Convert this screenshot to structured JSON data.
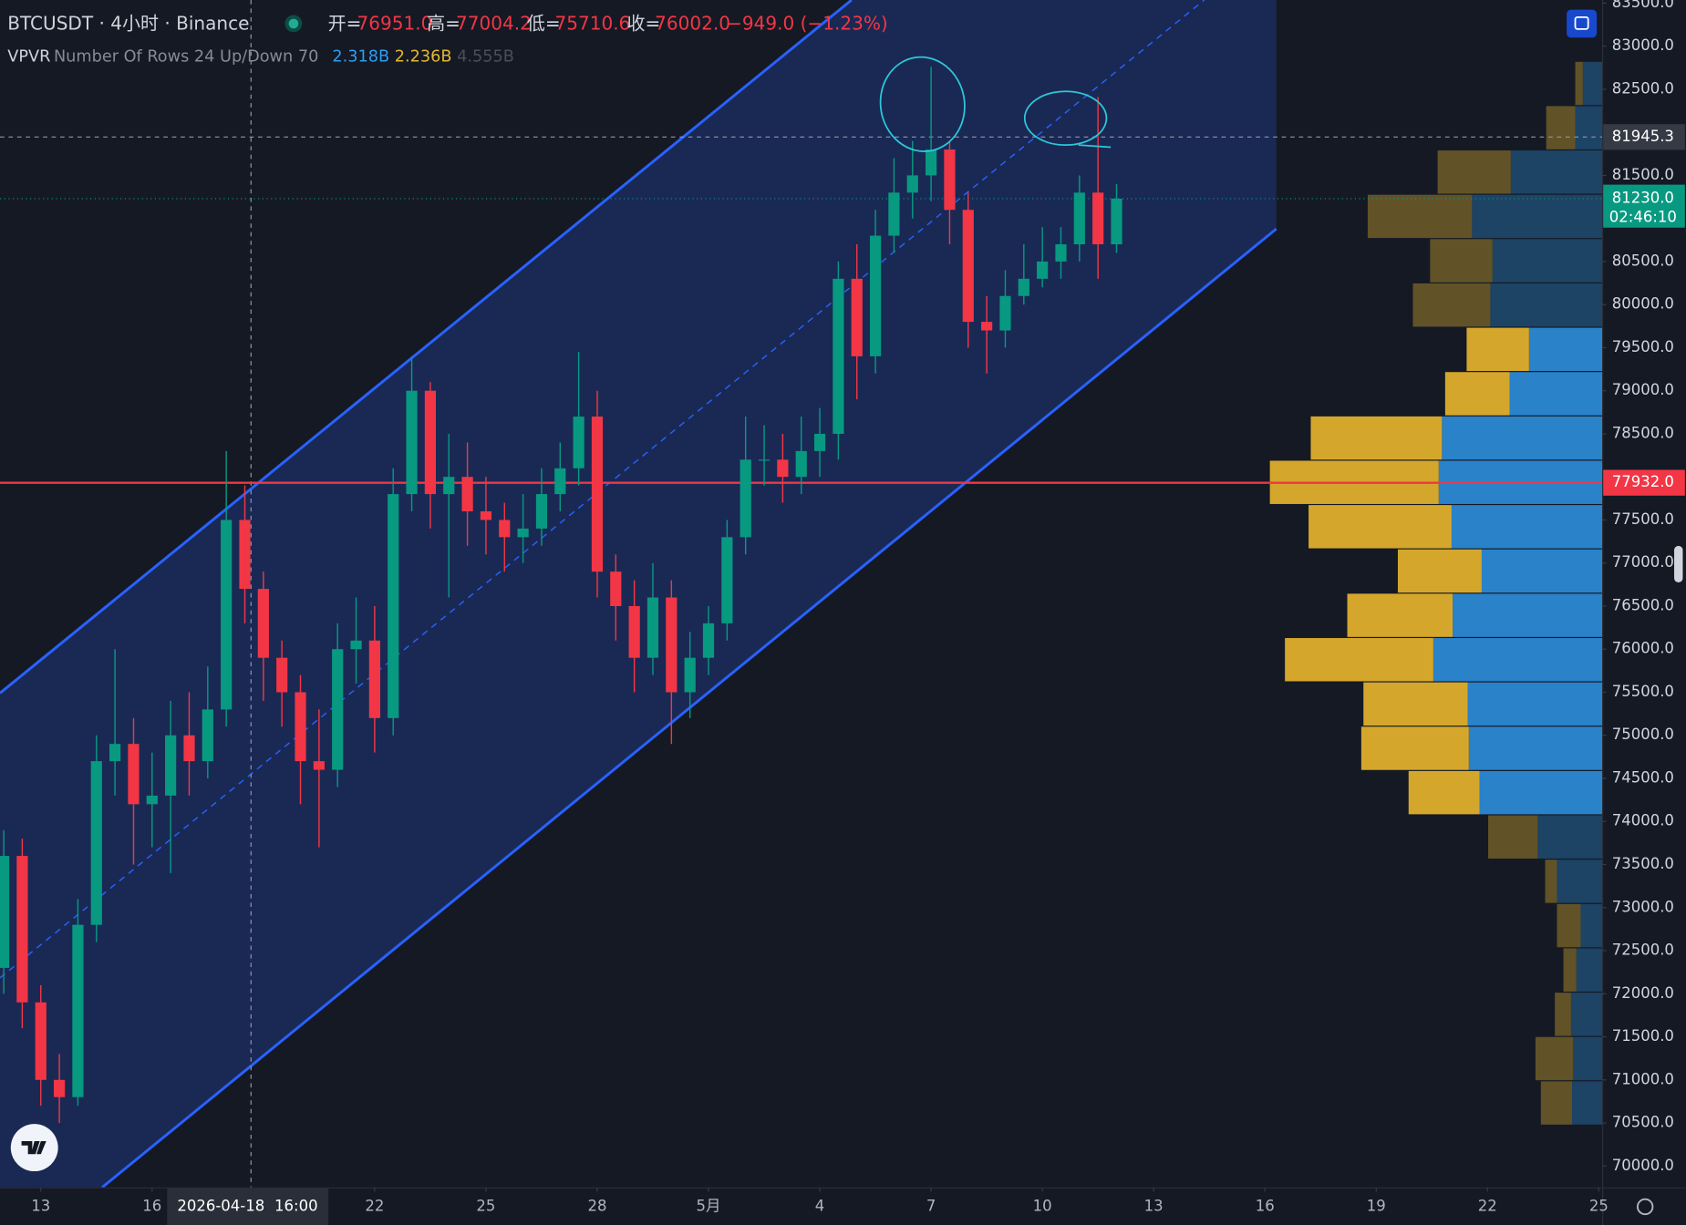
{
  "header": {
    "symbol": "BTCUSDT · 4小时 · Binance",
    "open_label": "开=",
    "open": "76951.0",
    "high_label": "高=",
    "high": "77004.2",
    "low_label": "低=",
    "low": "75710.6",
    "close_label": "收=",
    "close": "76002.0",
    "change": "−949.0 (−1.23%)"
  },
  "indicator": {
    "name": "VPVR",
    "settings": "Number Of Rows 24 Up/Down 70",
    "up_volume": "2.318B",
    "down_volume": "2.236B",
    "total_volume": "4.555B"
  },
  "chart_data": {
    "type": "candlestick",
    "x": [
      -1,
      -0.5,
      0,
      0.5,
      1,
      1.5,
      2,
      2.5,
      3,
      3.5,
      4,
      4.5,
      5,
      5.5,
      6,
      6.5,
      7,
      7.5,
      8,
      8.5,
      9,
      9.5,
      10,
      10.5,
      11,
      11.5,
      12,
      12.5,
      13,
      13.5,
      14,
      14.5,
      15,
      15.5,
      16,
      16.5,
      17,
      17.5,
      18,
      18.5,
      19,
      19.5,
      20,
      20.5,
      21,
      21.5,
      22,
      22.5,
      23,
      23.5,
      24,
      24.5,
      25,
      25.5,
      26,
      26.5,
      27,
      27.5,
      28,
      28.5,
      29
    ],
    "open": [
      72300,
      73600,
      71900,
      71000,
      70800,
      72800,
      74700,
      74900,
      74200,
      74300,
      75000,
      74700,
      75300,
      77500,
      76700,
      75900,
      75500,
      74700,
      74600,
      76000,
      76100,
      75200,
      77800,
      79000,
      77800,
      78000,
      77600,
      77500,
      77300,
      77400,
      77800,
      78100,
      78700,
      76900,
      76500,
      75900,
      76600,
      75500,
      75900,
      76300,
      77300,
      78200,
      78200,
      78000,
      78300,
      78500,
      80300,
      79400,
      80800,
      81300,
      81500,
      81800,
      81100,
      79800,
      79700,
      80100,
      80300,
      80500,
      80700,
      81300,
      80700
    ],
    "high": [
      73900,
      73800,
      72100,
      71300,
      73100,
      75000,
      76000,
      75200,
      74800,
      75400,
      75500,
      75800,
      78300,
      77900,
      76900,
      76100,
      75700,
      75300,
      76300,
      76600,
      76500,
      78100,
      79400,
      79100,
      78500,
      78400,
      78000,
      77700,
      77800,
      78100,
      78400,
      79450,
      79000,
      77100,
      76800,
      77000,
      76800,
      76200,
      76500,
      77500,
      78700,
      78600,
      78500,
      78700,
      78800,
      80500,
      80700,
      81100,
      81700,
      81900,
      82760,
      81900,
      81300,
      80100,
      80400,
      80700,
      80900,
      80900,
      81500,
      82410,
      81400
    ],
    "low": [
      72000,
      71600,
      70700,
      70500,
      70700,
      72600,
      74300,
      73500,
      73700,
      73400,
      74300,
      74500,
      75100,
      76300,
      75400,
      75100,
      74200,
      73700,
      74400,
      75600,
      74800,
      75000,
      77600,
      77400,
      76600,
      77200,
      77100,
      76900,
      77000,
      77200,
      77600,
      77900,
      76600,
      76100,
      75500,
      75700,
      74900,
      75200,
      75700,
      76100,
      77100,
      77900,
      77700,
      77800,
      78000,
      78200,
      78900,
      79200,
      80600,
      81000,
      81200,
      80700,
      79500,
      79200,
      79500,
      80000,
      80200,
      80300,
      80500,
      80300,
      80600
    ],
    "close": [
      73600,
      71900,
      71000,
      70800,
      72800,
      74700,
      74900,
      74200,
      74300,
      75000,
      74700,
      75300,
      77500,
      76700,
      75900,
      75500,
      74700,
      74600,
      76000,
      76100,
      75200,
      77800,
      79000,
      77800,
      78000,
      77600,
      77500,
      77300,
      77400,
      77800,
      78100,
      78700,
      76900,
      76500,
      75900,
      76600,
      75500,
      75900,
      76300,
      77300,
      78200,
      78200,
      78000,
      78300,
      78500,
      80300,
      79400,
      80800,
      81300,
      81500,
      81800,
      81100,
      79800,
      79700,
      80100,
      80300,
      80500,
      80700,
      81300,
      80700,
      81230
    ],
    "up_color": "#089981",
    "down_color": "#f23645",
    "xlim": [
      -1.1,
      42.09
    ],
    "xticks": [
      {
        "value": 0,
        "label": "13"
      },
      {
        "value": 3,
        "label": "16"
      },
      {
        "value": 9,
        "label": "22"
      },
      {
        "value": 12,
        "label": "25"
      },
      {
        "value": 15,
        "label": "28"
      },
      {
        "value": 18,
        "label": "5月"
      },
      {
        "value": 21,
        "label": "4"
      },
      {
        "value": 24,
        "label": "7"
      },
      {
        "value": 27,
        "label": "10"
      },
      {
        "value": 30,
        "label": "13"
      },
      {
        "value": 33,
        "label": "16"
      },
      {
        "value": 36,
        "label": "19"
      },
      {
        "value": 39,
        "label": "22"
      },
      {
        "value": 42,
        "label": "25"
      }
    ],
    "ylim": [
      69752,
      83536
    ],
    "yticks": [
      {
        "value": 83500,
        "label": "83500.0"
      },
      {
        "value": 83000,
        "label": "83000.0"
      },
      {
        "value": 82500,
        "label": "82500.0"
      },
      {
        "value": 81500,
        "label": "81500.0"
      },
      {
        "value": 80500,
        "label": "80500.0"
      },
      {
        "value": 80000,
        "label": "80000.0"
      },
      {
        "value": 79500,
        "label": "79500.0"
      },
      {
        "value": 79000,
        "label": "79000.0"
      },
      {
        "value": 78500,
        "label": "78500.0"
      },
      {
        "value": 77500,
        "label": "77500.0"
      },
      {
        "value": 77000,
        "label": "77000.0"
      },
      {
        "value": 76500,
        "label": "76500.0"
      },
      {
        "value": 76000,
        "label": "76000.0"
      },
      {
        "value": 75500,
        "label": "75500.0"
      },
      {
        "value": 75000,
        "label": "75000.0"
      },
      {
        "value": 74500,
        "label": "74500.0"
      },
      {
        "value": 74000,
        "label": "74000.0"
      },
      {
        "value": 73500,
        "label": "73500.0"
      },
      {
        "value": 73000,
        "label": "73000.0"
      },
      {
        "value": 72500,
        "label": "72500.0"
      },
      {
        "value": 72000,
        "label": "72000.0"
      },
      {
        "value": 71500,
        "label": "71500.0"
      },
      {
        "value": 71000,
        "label": "71000.0"
      },
      {
        "value": 70500,
        "label": "70500.0"
      },
      {
        "value": 70000,
        "label": "70000.0"
      }
    ],
    "crosshair": {
      "x": 5.667,
      "date_label": "2026-04-18",
      "time_label": "16:00",
      "y": 81945.3
    },
    "last_price": {
      "value": 81230,
      "label": "81230.0",
      "countdown": "02:46:10",
      "color": "#089981"
    },
    "horizontal_line": {
      "value": 77932,
      "label": "77932.0",
      "color": "#f23645"
    },
    "volume_profile": {
      "price_range": [
        70475,
        82825
      ],
      "up": [
        28,
        27,
        29,
        24,
        20,
        42,
        60,
        114,
        124,
        125,
        157,
        139,
        112,
        140,
        152,
        149,
        86,
        68,
        104,
        102,
        121,
        85,
        25,
        18
      ],
      "down": [
        29,
        35,
        15,
        12,
        22,
        11,
        46,
        66,
        100,
        97,
        138,
        98,
        78,
        133,
        157,
        122,
        60,
        58,
        72,
        58,
        97,
        68,
        27,
        7
      ],
      "up_color": "#2a82c8",
      "down_color": "#d4a72c",
      "value_area_rows": [
        7,
        17
      ]
    }
  }
}
